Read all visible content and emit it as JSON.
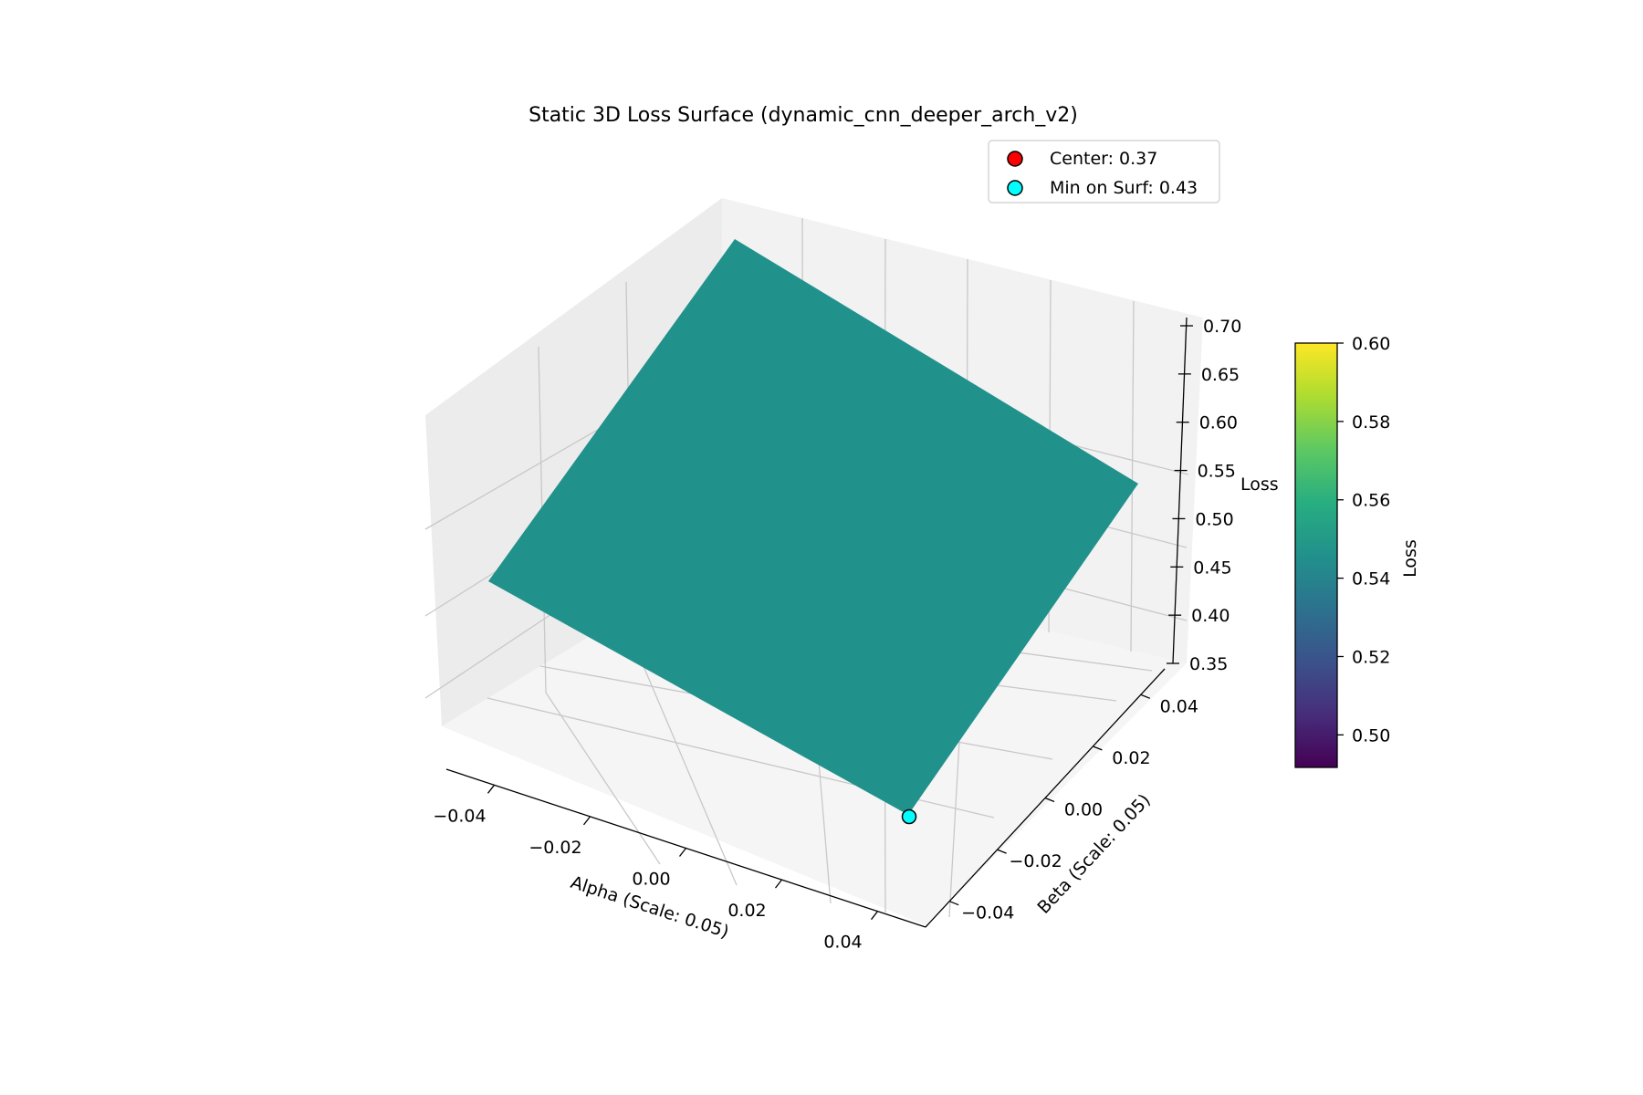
{
  "chart_data": {
    "type": "surface3d",
    "title": "Static 3D Loss Surface (dynamic_cnn_deeper_arch_v2)",
    "xlabel": "Alpha (Scale: 0.05)",
    "ylabel": "Beta (Scale: 0.05)",
    "zlabel": "Loss",
    "xlim": [
      -0.05,
      0.05
    ],
    "ylim": [
      -0.05,
      0.05
    ],
    "zlim": [
      0.35,
      0.7
    ],
    "x_ticks": [
      "−0.04",
      "−0.02",
      "0.00",
      "0.02",
      "0.04"
    ],
    "y_ticks": [
      "−0.04",
      "−0.02",
      "0.00",
      "0.02",
      "0.04"
    ],
    "z_ticks": [
      "0.35",
      "0.40",
      "0.45",
      "0.50",
      "0.55",
      "0.60",
      "0.65",
      "0.70"
    ],
    "surface": {
      "color": "#21918c",
      "corners": [
        {
          "alpha": -0.05,
          "beta": -0.05,
          "loss": 0.55
        },
        {
          "alpha": 0.05,
          "beta": -0.05,
          "loss": 0.43
        },
        {
          "alpha": 0.05,
          "beta": 0.05,
          "loss": 0.68
        },
        {
          "alpha": -0.05,
          "beta": 0.05,
          "loss": 0.7
        }
      ]
    },
    "points": [
      {
        "name": "Center",
        "label": "Center: 0.37",
        "alpha": 0.0,
        "beta": 0.0,
        "loss": 0.37,
        "color": "#ff0000",
        "visible": false
      },
      {
        "name": "Min on Surf",
        "label": "Min on Surf: 0.43",
        "alpha": 0.05,
        "beta": -0.05,
        "loss": 0.43,
        "color": "#00ffff",
        "visible": true
      }
    ],
    "legend": {
      "placement": "top-right",
      "entries": [
        {
          "label": "Center: 0.37",
          "color": "#ff0000"
        },
        {
          "label": "Min on Surf: 0.43",
          "color": "#00ffff"
        }
      ]
    },
    "colorbar": {
      "label": "Loss",
      "colormap": "viridis",
      "range": [
        0.4917,
        0.6
      ],
      "ticks": [
        "0.50",
        "0.52",
        "0.54",
        "0.56",
        "0.58",
        "0.60"
      ],
      "tick_values": [
        0.5,
        0.52,
        0.54,
        0.56,
        0.58,
        0.6
      ]
    },
    "grid": true
  }
}
